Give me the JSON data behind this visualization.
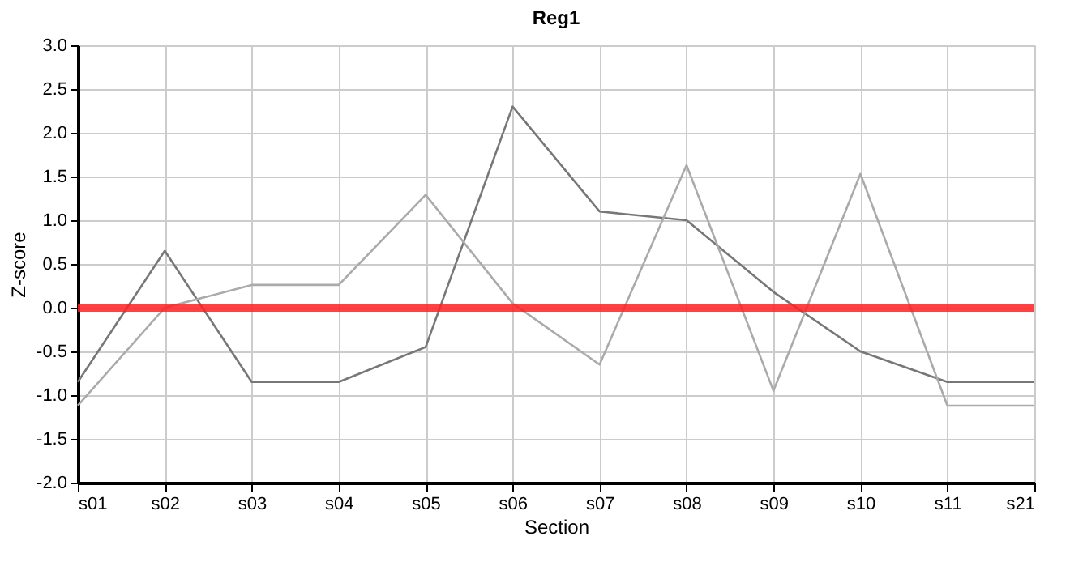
{
  "chart_data": {
    "type": "line",
    "title": "Reg1",
    "xlabel": "Section",
    "ylabel": "Z-score",
    "categories": [
      "s01",
      "s02",
      "s03",
      "s04",
      "s05",
      "s06",
      "s07",
      "s08",
      "s09",
      "s10",
      "s11",
      "s21"
    ],
    "series": [
      {
        "color": "#777777",
        "values": [
          -0.85,
          0.65,
          -0.85,
          -0.85,
          -0.45,
          2.3,
          1.1,
          1.0,
          0.18,
          -0.5,
          -0.85,
          -0.85
        ]
      },
      {
        "color": "#aaaaaa",
        "values": [
          -1.12,
          0.0,
          0.26,
          0.26,
          1.29,
          0.05,
          -0.65,
          1.63,
          -0.95,
          1.53,
          -1.12,
          -1.12
        ]
      }
    ],
    "ylim": [
      -2.0,
      3.0
    ],
    "yticks": [
      {
        "value": -2,
        "label": "-2.0"
      },
      {
        "value": -1.5,
        "label": "-1.5"
      },
      {
        "value": -1,
        "label": "-1.0"
      },
      {
        "value": -0.5,
        "label": "-0.5"
      },
      {
        "value": 0,
        "label": "0.0"
      },
      {
        "value": 0.5,
        "label": "0.5"
      },
      {
        "value": 1,
        "label": "1.0"
      },
      {
        "value": 1.5,
        "label": "1.5"
      },
      {
        "value": 2,
        "label": "2.0"
      },
      {
        "value": 2.5,
        "label": "2.5"
      },
      {
        "value": 3,
        "label": "3.0"
      }
    ],
    "ref_lines": [
      {
        "axis": "y",
        "value": 0,
        "color": "#ff2020"
      }
    ],
    "grid": true,
    "legend": false,
    "marker": "none",
    "line_style": "solid"
  }
}
